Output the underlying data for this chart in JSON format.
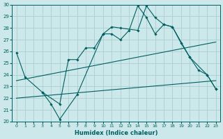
{
  "xlabel": "Humidex (Indice chaleur)",
  "bg_color": "#cce8ea",
  "grid_color": "#aacfd2",
  "line_color": "#005f5f",
  "xlim": [
    -0.5,
    23.5
  ],
  "ylim": [
    20,
    30
  ],
  "xticks": [
    0,
    1,
    2,
    3,
    4,
    5,
    6,
    7,
    8,
    9,
    10,
    11,
    12,
    13,
    14,
    15,
    16,
    17,
    18,
    19,
    20,
    21,
    22,
    23
  ],
  "yticks": [
    20,
    21,
    22,
    23,
    24,
    25,
    26,
    27,
    28,
    29,
    30
  ],
  "line1": {
    "x": [
      0,
      1,
      3,
      4,
      5,
      7,
      10,
      11,
      12,
      14,
      15,
      16,
      17,
      18,
      20,
      21,
      22,
      23
    ],
    "y": [
      25.9,
      23.8,
      22.5,
      21.5,
      20.2,
      22.3,
      27.5,
      28.1,
      28.0,
      27.8,
      29.9,
      28.9,
      28.3,
      28.1,
      25.5,
      24.4,
      24.0,
      22.8
    ]
  },
  "line2": {
    "x": [
      3,
      5,
      6,
      7,
      8,
      9,
      10,
      11,
      12,
      13,
      14,
      15,
      16,
      17,
      18,
      19,
      20,
      22,
      23
    ],
    "y": [
      22.5,
      21.5,
      25.3,
      25.3,
      26.3,
      26.3,
      27.5,
      27.5,
      27.0,
      27.8,
      29.9,
      28.9,
      27.5,
      28.3,
      28.1,
      26.7,
      25.5,
      24.0,
      22.8
    ]
  },
  "line3": {
    "x": [
      0,
      23
    ],
    "y": [
      22.0,
      23.5
    ]
  },
  "line4": {
    "x": [
      0,
      23
    ],
    "y": [
      23.5,
      26.8
    ]
  }
}
